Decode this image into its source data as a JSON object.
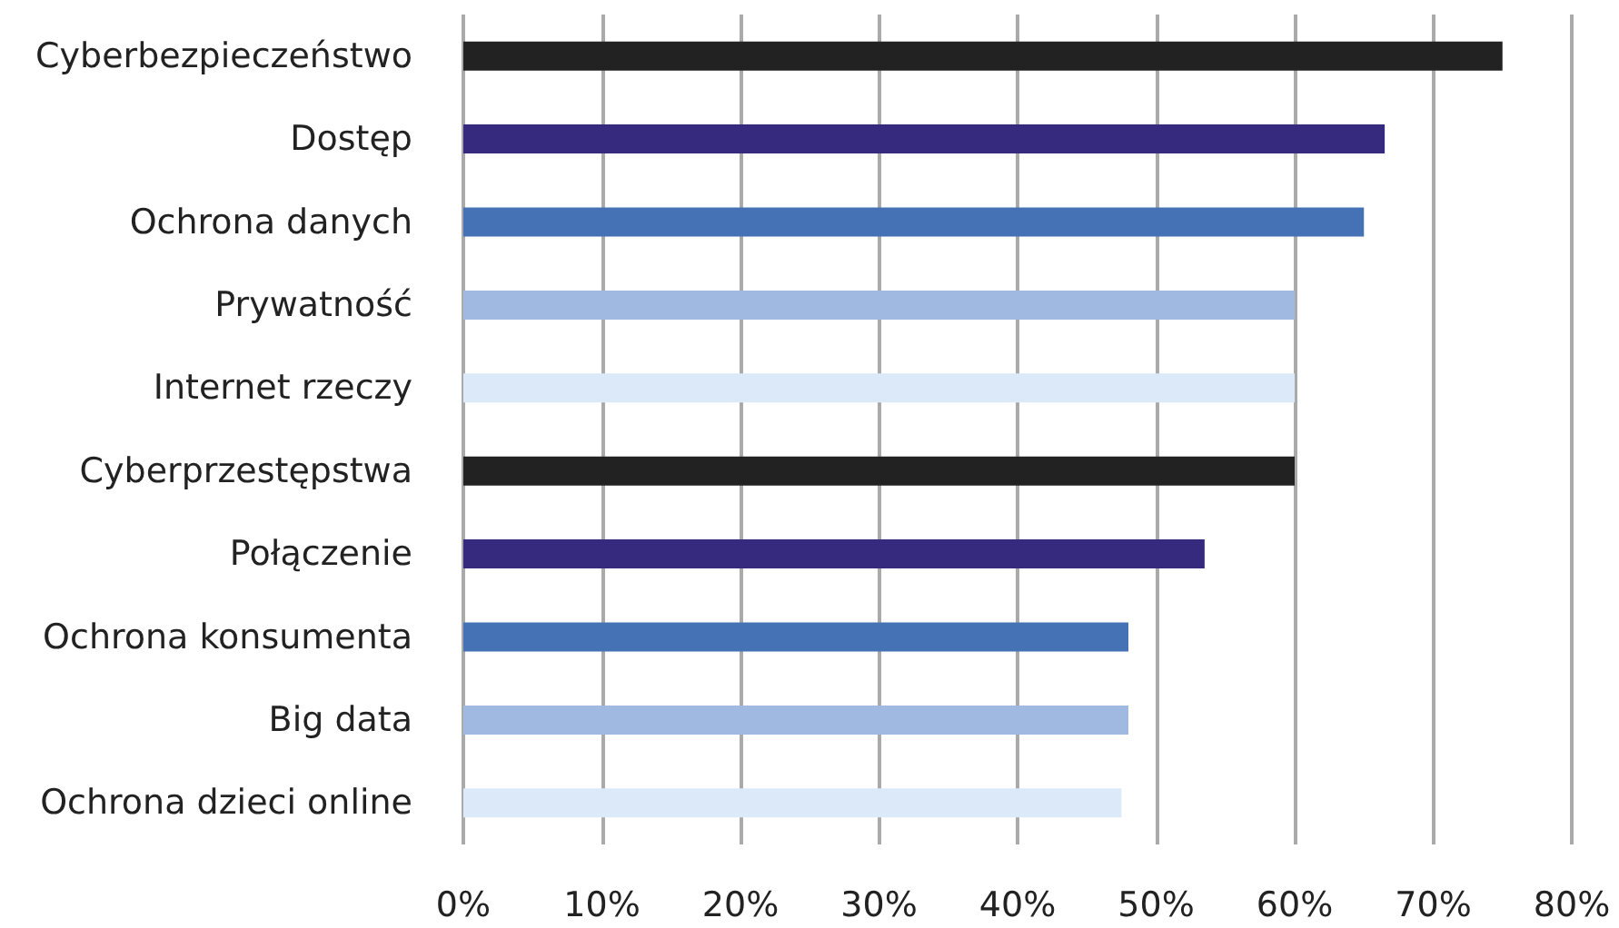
{
  "chart_data": {
    "type": "bar",
    "orientation": "horizontal",
    "categories": [
      "Cyberbezpieczeństwo",
      "Dostęp",
      "Ochrona danych",
      "Prywatność",
      "Internet rzeczy",
      "Cyberprzestępstwa",
      "Połączenie",
      "Ochrona konsumenta",
      "Big data",
      "Ochrona dzieci online"
    ],
    "values": [
      75,
      66.5,
      65,
      60,
      60,
      60,
      53.5,
      48,
      48,
      47.5
    ],
    "colors": [
      "#222222",
      "#352a7e",
      "#4472b4",
      "#a0b9e0",
      "#dbe9f8",
      "#222222",
      "#352a7e",
      "#4472b4",
      "#a0b9e0",
      "#dbe9f8"
    ],
    "xlim": [
      0,
      80
    ],
    "xticks": [
      {
        "value": 0,
        "label": "0%"
      },
      {
        "value": 10,
        "label": "10%"
      },
      {
        "value": 20,
        "label": "20%"
      },
      {
        "value": 30,
        "label": "30%"
      },
      {
        "value": 40,
        "label": "40%"
      },
      {
        "value": 50,
        "label": "50%"
      },
      {
        "value": 60,
        "label": "60%"
      },
      {
        "value": 70,
        "label": "70%"
      },
      {
        "value": 80,
        "label": "80%"
      }
    ],
    "grid": "x"
  }
}
